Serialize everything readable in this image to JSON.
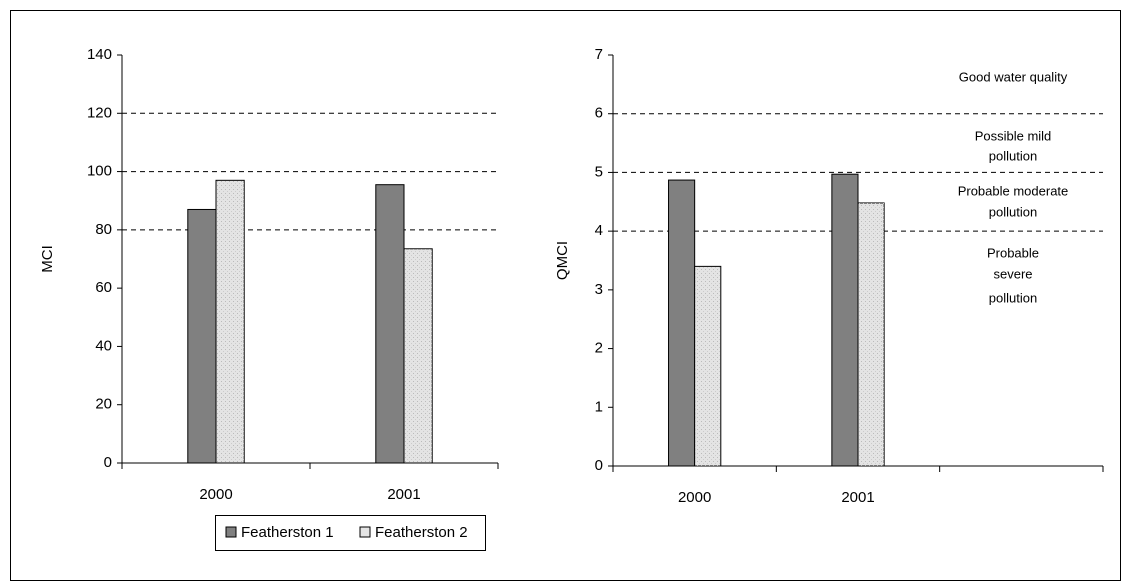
{
  "chart_data": [
    {
      "type": "bar",
      "y_label": "MCI",
      "categories": [
        "2000",
        "2001"
      ],
      "series": [
        {
          "name": "Featherston 1",
          "color": "#808080",
          "values": [
            87,
            95.5
          ]
        },
        {
          "name": "Featherston 2",
          "color": "#e4e4e4",
          "values": [
            97,
            73.5
          ]
        }
      ],
      "ylim": [
        0,
        140
      ],
      "yticks": [
        0,
        20,
        40,
        60,
        80,
        100,
        120,
        140
      ],
      "reference_lines": [
        80,
        100,
        120
      ],
      "grid": false,
      "legend": "bottom"
    },
    {
      "type": "bar",
      "y_label": "QMCI",
      "categories": [
        "2000",
        "2001",
        null
      ],
      "series": [
        {
          "name": "Featherston 1",
          "color": "#808080",
          "values": [
            4.87,
            4.97,
            null
          ]
        },
        {
          "name": "Featherston 2",
          "color": "#e4e4e4",
          "values": [
            3.4,
            4.48,
            null
          ]
        }
      ],
      "ylim": [
        0,
        7
      ],
      "yticks": [
        0,
        1,
        2,
        3,
        4,
        5,
        6,
        7
      ],
      "reference_lines": [
        4,
        5,
        6
      ],
      "grid": false,
      "legend": "none",
      "annotations": [
        [
          "Good water quality"
        ],
        [
          "Possible mild",
          "pollution"
        ],
        [
          "Probable moderate",
          "pollution"
        ],
        [
          "Probable",
          "severe",
          "pollution"
        ]
      ]
    }
  ]
}
